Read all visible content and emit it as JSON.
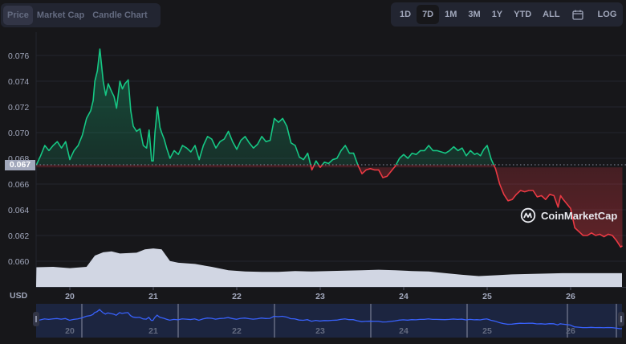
{
  "tabs": [
    {
      "label": "Price",
      "active": true
    },
    {
      "label": "Market Cap",
      "active": false
    },
    {
      "label": "Candle Chart",
      "active": false
    }
  ],
  "ranges": [
    {
      "label": "1D",
      "active": false
    },
    {
      "label": "7D",
      "active": true
    },
    {
      "label": "1M",
      "active": false
    },
    {
      "label": "3M",
      "active": false
    },
    {
      "label": "1Y",
      "active": false
    },
    {
      "label": "YTD",
      "active": false
    },
    {
      "label": "ALL",
      "active": false
    }
  ],
  "calendar_icon": "calendar-icon",
  "log_label": "LOG",
  "current_price_label": "0.067",
  "currency_label": "USD",
  "watermark": "CoinMarketCap",
  "colors": {
    "up": "#16c784",
    "down": "#ea3943",
    "volume": "#d1d6e3",
    "navigator_fill": "#1c2540",
    "navigator_line": "#3861fb",
    "background": "#17171a",
    "panel": "#222531"
  },
  "chart_data": {
    "type": "line",
    "title": "",
    "xlabel": "",
    "ylabel": "USD",
    "ylim": [
      0.0595,
      0.0768
    ],
    "reference_price": 0.0673,
    "y_ticks": [
      "0.060",
      "0.062",
      "0.064",
      "0.066",
      "0.068",
      "0.070",
      "0.072",
      "0.074",
      "0.076"
    ],
    "x_ticks": [
      "20",
      "21",
      "22",
      "23",
      "24",
      "25",
      "26"
    ],
    "grid": true,
    "series": [
      {
        "name": "Price",
        "x": [
          19.6,
          19.65,
          19.7,
          19.75,
          19.8,
          19.85,
          19.9,
          19.95,
          20.0,
          20.05,
          20.1,
          20.15,
          20.2,
          20.25,
          20.28,
          20.3,
          20.33,
          20.36,
          20.4,
          20.43,
          20.46,
          20.5,
          20.53,
          20.56,
          20.6,
          20.63,
          20.66,
          20.7,
          20.73,
          20.76,
          20.8,
          20.84,
          20.88,
          20.92,
          20.95,
          20.98,
          21.0,
          21.02,
          21.05,
          21.08,
          21.1,
          21.13,
          21.16,
          21.2,
          21.25,
          21.3,
          21.35,
          21.4,
          21.45,
          21.5,
          21.55,
          21.6,
          21.65,
          21.7,
          21.75,
          21.8,
          21.85,
          21.9,
          21.95,
          22.0,
          22.05,
          22.1,
          22.15,
          22.2,
          22.25,
          22.3,
          22.35,
          22.4,
          22.45,
          22.5,
          22.55,
          22.6,
          22.65,
          22.7,
          22.75,
          22.8,
          22.85,
          22.9,
          22.95,
          23.0,
          23.05,
          23.1,
          23.15,
          23.2,
          23.25,
          23.3,
          23.35,
          23.4,
          23.45,
          23.5,
          23.55,
          23.6,
          23.65,
          23.7,
          23.75,
          23.8,
          23.85,
          23.9,
          23.95,
          24.0,
          24.05,
          24.1,
          24.15,
          24.2,
          24.25,
          24.3,
          24.35,
          24.4,
          24.45,
          24.5,
          24.55,
          24.6,
          24.65,
          24.7,
          24.75,
          24.8,
          24.85,
          24.88,
          24.92,
          24.96,
          25.0,
          25.05,
          25.1,
          25.15,
          25.2,
          25.25,
          25.3,
          25.35,
          25.4,
          25.45,
          25.5,
          25.55,
          25.6,
          25.65,
          25.7,
          25.75,
          25.8,
          25.85,
          25.88,
          25.9,
          25.95,
          26.0,
          26.05,
          26.1,
          26.15,
          26.2,
          26.25,
          26.3,
          26.35,
          26.4,
          26.45,
          26.5,
          26.55,
          26.6,
          26.62
        ],
        "values": [
          0.0675,
          0.0682,
          0.069,
          0.0686,
          0.069,
          0.0693,
          0.0688,
          0.0693,
          0.0679,
          0.0686,
          0.069,
          0.0698,
          0.0711,
          0.0717,
          0.0725,
          0.074,
          0.0748,
          0.0765,
          0.074,
          0.0729,
          0.0738,
          0.0732,
          0.0728,
          0.0719,
          0.074,
          0.0734,
          0.0738,
          0.0741,
          0.0717,
          0.0705,
          0.0701,
          0.0703,
          0.069,
          0.0688,
          0.0702,
          0.0678,
          0.0678,
          0.07,
          0.072,
          0.0704,
          0.07,
          0.0695,
          0.0688,
          0.068,
          0.0686,
          0.0683,
          0.069,
          0.0688,
          0.0685,
          0.069,
          0.0679,
          0.069,
          0.0697,
          0.0695,
          0.0688,
          0.0693,
          0.0695,
          0.0701,
          0.0693,
          0.0687,
          0.0694,
          0.0697,
          0.0692,
          0.0688,
          0.0691,
          0.0697,
          0.0693,
          0.0694,
          0.0711,
          0.0708,
          0.0711,
          0.0705,
          0.0692,
          0.069,
          0.0681,
          0.0679,
          0.0684,
          0.0671,
          0.0678,
          0.0673,
          0.0677,
          0.0676,
          0.0679,
          0.068,
          0.0686,
          0.069,
          0.0684,
          0.0684,
          0.0675,
          0.0668,
          0.0671,
          0.0672,
          0.0671,
          0.0671,
          0.0665,
          0.0666,
          0.067,
          0.0674,
          0.068,
          0.0683,
          0.068,
          0.0684,
          0.0683,
          0.0686,
          0.0686,
          0.069,
          0.0686,
          0.0686,
          0.0685,
          0.0684,
          0.0686,
          0.0689,
          0.0686,
          0.0688,
          0.0682,
          0.0686,
          0.0683,
          0.0684,
          0.0682,
          0.0687,
          0.069,
          0.0679,
          0.0672,
          0.066,
          0.0652,
          0.0647,
          0.0648,
          0.0652,
          0.0655,
          0.0654,
          0.0655,
          0.0655,
          0.065,
          0.0651,
          0.0648,
          0.0652,
          0.0651,
          0.0642,
          0.0651,
          0.0649,
          0.0645,
          0.0641,
          0.0626,
          0.0623,
          0.062,
          0.062,
          0.0622,
          0.062,
          0.0621,
          0.0619,
          0.0621,
          0.062,
          0.0616,
          0.0611,
          0.0612
        ]
      },
      {
        "name": "Volume",
        "x": [
          19.6,
          19.8,
          20.0,
          20.2,
          20.3,
          20.4,
          20.5,
          20.6,
          20.8,
          20.9,
          21.0,
          21.1,
          21.2,
          21.3,
          21.5,
          21.7,
          21.9,
          22.1,
          22.3,
          22.5,
          22.7,
          22.9,
          23.1,
          23.3,
          23.5,
          23.7,
          23.9,
          24.1,
          24.3,
          24.5,
          24.7,
          24.9,
          25.1,
          25.3,
          25.5,
          25.7,
          25.9,
          26.1,
          26.3,
          26.5,
          26.62
        ],
        "values": [
          0.47,
          0.48,
          0.45,
          0.48,
          0.75,
          0.83,
          0.85,
          0.8,
          0.82,
          0.9,
          0.92,
          0.9,
          0.62,
          0.58,
          0.55,
          0.48,
          0.4,
          0.37,
          0.36,
          0.36,
          0.38,
          0.37,
          0.38,
          0.39,
          0.4,
          0.41,
          0.4,
          0.38,
          0.37,
          0.33,
          0.29,
          0.26,
          0.28,
          0.3,
          0.31,
          0.32,
          0.33,
          0.33,
          0.33,
          0.33,
          0.33
        ]
      }
    ]
  }
}
